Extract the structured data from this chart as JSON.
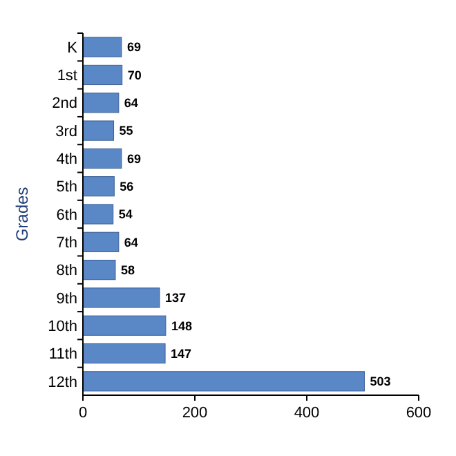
{
  "chart_data": {
    "type": "bar",
    "orientation": "horizontal",
    "ylabel": "Grades",
    "categories": [
      "K",
      "1st",
      "2nd",
      "3rd",
      "4th",
      "5th",
      "6th",
      "7th",
      "8th",
      "9th",
      "10th",
      "11th",
      "12th"
    ],
    "values": [
      69,
      70,
      64,
      55,
      69,
      56,
      54,
      64,
      58,
      137,
      148,
      147,
      503
    ],
    "color": "#5a87c6",
    "xlim": [
      0,
      600
    ],
    "xticks": [
      0,
      200,
      400,
      600
    ],
    "data_labels": true
  }
}
